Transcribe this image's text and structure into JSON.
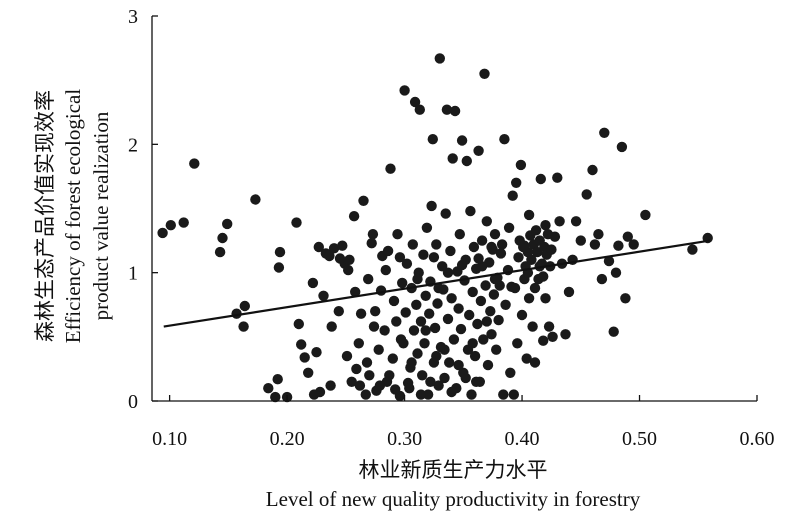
{
  "chart_data": {
    "type": "scatter",
    "title": "",
    "xlabel_cn": "林业新质生产力水平",
    "xlabel_en": "Level of new quality productivity in forestry",
    "ylabel_cn": "森林生态产品价值实现效率",
    "ylabel_en_line1": "Efficiency of forest ecological",
    "ylabel_en_line2": "product value realization",
    "xlim": [
      0.085,
      0.6
    ],
    "ylim": [
      0,
      3
    ],
    "x_ticks": [
      0.1,
      0.2,
      0.3,
      0.4,
      0.5,
      0.6
    ],
    "x_tick_labels": [
      "0.10",
      "0.20",
      "0.30",
      "0.40",
      "0.50",
      "0.60"
    ],
    "y_ticks": [
      0,
      1,
      2,
      3
    ],
    "y_tick_labels": [
      "0",
      "1",
      "2",
      "3"
    ],
    "grid": false,
    "legend": "none",
    "marker_color": "#1a1a1a",
    "line_color": "#111111",
    "trendline": {
      "x": [
        0.095,
        0.56
      ],
      "y": [
        0.58,
        1.25
      ]
    },
    "points": [
      [
        0.094,
        1.31
      ],
      [
        0.101,
        1.37
      ],
      [
        0.112,
        1.39
      ],
      [
        0.121,
        1.85
      ],
      [
        0.143,
        1.16
      ],
      [
        0.145,
        1.27
      ],
      [
        0.149,
        1.38
      ],
      [
        0.157,
        0.68
      ],
      [
        0.163,
        0.58
      ],
      [
        0.164,
        0.74
      ],
      [
        0.173,
        1.57
      ],
      [
        0.184,
        0.1
      ],
      [
        0.19,
        0.03
      ],
      [
        0.192,
        0.17
      ],
      [
        0.193,
        1.04
      ],
      [
        0.194,
        1.16
      ],
      [
        0.2,
        0.03
      ],
      [
        0.208,
        1.39
      ],
      [
        0.21,
        0.6
      ],
      [
        0.212,
        0.44
      ],
      [
        0.215,
        0.34
      ],
      [
        0.218,
        0.22
      ],
      [
        0.223,
        0.05
      ],
      [
        0.225,
        0.38
      ],
      [
        0.227,
        1.2
      ],
      [
        0.228,
        0.07
      ],
      [
        0.231,
        0.82
      ],
      [
        0.233,
        1.15
      ],
      [
        0.237,
        0.12
      ],
      [
        0.238,
        0.58
      ],
      [
        0.24,
        1.19
      ],
      [
        0.244,
        0.7
      ],
      [
        0.247,
        1.21
      ],
      [
        0.249,
        1.07
      ],
      [
        0.251,
        0.35
      ],
      [
        0.253,
        1.1
      ],
      [
        0.255,
        0.15
      ],
      [
        0.257,
        1.44
      ],
      [
        0.259,
        0.25
      ],
      [
        0.261,
        0.45
      ],
      [
        0.263,
        0.68
      ],
      [
        0.265,
        1.56
      ],
      [
        0.267,
        0.05
      ],
      [
        0.269,
        0.95
      ],
      [
        0.27,
        0.2
      ],
      [
        0.272,
        1.23
      ],
      [
        0.274,
        0.58
      ],
      [
        0.276,
        0.08
      ],
      [
        0.278,
        0.4
      ],
      [
        0.28,
        0.86
      ],
      [
        0.281,
        1.13
      ],
      [
        0.283,
        0.55
      ],
      [
        0.285,
        0.15
      ],
      [
        0.286,
        1.17
      ],
      [
        0.288,
        1.81
      ],
      [
        0.29,
        0.33
      ],
      [
        0.291,
        0.78
      ],
      [
        0.293,
        0.62
      ],
      [
        0.294,
        1.3
      ],
      [
        0.296,
        0.04
      ],
      [
        0.297,
        0.48
      ],
      [
        0.298,
        0.92
      ],
      [
        0.3,
        2.42
      ],
      [
        0.301,
        0.69
      ],
      [
        0.302,
        1.07
      ],
      [
        0.303,
        0.14
      ],
      [
        0.305,
        0.26
      ],
      [
        0.306,
        0.88
      ],
      [
        0.307,
        1.22
      ],
      [
        0.308,
        0.55
      ],
      [
        0.309,
        2.33
      ],
      [
        0.31,
        0.75
      ],
      [
        0.311,
        0.37
      ],
      [
        0.312,
        1.0
      ],
      [
        0.313,
        2.27
      ],
      [
        0.314,
        0.62
      ],
      [
        0.315,
        0.2
      ],
      [
        0.316,
        1.14
      ],
      [
        0.317,
        0.45
      ],
      [
        0.318,
        0.82
      ],
      [
        0.319,
        1.35
      ],
      [
        0.32,
        0.05
      ],
      [
        0.321,
        0.68
      ],
      [
        0.322,
        0.93
      ],
      [
        0.323,
        1.52
      ],
      [
        0.324,
        2.04
      ],
      [
        0.325,
        0.3
      ],
      [
        0.326,
        0.57
      ],
      [
        0.327,
        1.22
      ],
      [
        0.328,
        0.76
      ],
      [
        0.329,
        0.12
      ],
      [
        0.33,
        2.67
      ],
      [
        0.331,
        0.42
      ],
      [
        0.332,
        1.05
      ],
      [
        0.333,
        0.87
      ],
      [
        0.334,
        0.18
      ],
      [
        0.335,
        1.46
      ],
      [
        0.336,
        2.27
      ],
      [
        0.337,
        0.64
      ],
      [
        0.338,
        0.3
      ],
      [
        0.339,
        1.17
      ],
      [
        0.34,
        0.8
      ],
      [
        0.341,
        1.89
      ],
      [
        0.342,
        0.48
      ],
      [
        0.343,
        2.26
      ],
      [
        0.344,
        0.1
      ],
      [
        0.345,
        1.01
      ],
      [
        0.346,
        0.72
      ],
      [
        0.347,
        1.3
      ],
      [
        0.348,
        0.56
      ],
      [
        0.349,
        2.03
      ],
      [
        0.35,
        0.22
      ],
      [
        0.351,
        0.94
      ],
      [
        0.352,
        1.1
      ],
      [
        0.353,
        1.87
      ],
      [
        0.354,
        0.4
      ],
      [
        0.355,
        0.67
      ],
      [
        0.356,
        1.48
      ],
      [
        0.357,
        0.05
      ],
      [
        0.358,
        0.85
      ],
      [
        0.359,
        1.2
      ],
      [
        0.36,
        0.35
      ],
      [
        0.361,
        1.03
      ],
      [
        0.362,
        0.6
      ],
      [
        0.363,
        1.95
      ],
      [
        0.364,
        0.15
      ],
      [
        0.365,
        0.78
      ],
      [
        0.366,
        1.25
      ],
      [
        0.367,
        0.48
      ],
      [
        0.368,
        2.55
      ],
      [
        0.369,
        0.9
      ],
      [
        0.37,
        1.4
      ],
      [
        0.371,
        0.28
      ],
      [
        0.372,
        1.08
      ],
      [
        0.373,
        0.7
      ],
      [
        0.374,
        0.52
      ],
      [
        0.375,
        1.18
      ],
      [
        0.376,
        0.83
      ],
      [
        0.377,
        1.3
      ],
      [
        0.378,
        0.4
      ],
      [
        0.379,
        0.96
      ],
      [
        0.38,
        0.63
      ],
      [
        0.382,
        1.15
      ],
      [
        0.384,
        0.05
      ],
      [
        0.385,
        2.04
      ],
      [
        0.386,
        0.75
      ],
      [
        0.388,
        1.02
      ],
      [
        0.39,
        0.22
      ],
      [
        0.392,
        1.6
      ],
      [
        0.394,
        0.88
      ],
      [
        0.395,
        1.7
      ],
      [
        0.396,
        0.45
      ],
      [
        0.398,
        1.25
      ],
      [
        0.399,
        1.84
      ],
      [
        0.4,
        0.67
      ],
      [
        0.401,
        1.2
      ],
      [
        0.402,
        0.95
      ],
      [
        0.403,
        1.05
      ],
      [
        0.404,
        0.33
      ],
      [
        0.405,
        1.16
      ],
      [
        0.406,
        0.8
      ],
      [
        0.407,
        1.29
      ],
      [
        0.408,
        1.1
      ],
      [
        0.409,
        0.58
      ],
      [
        0.41,
        1.22
      ],
      [
        0.411,
        0.88
      ],
      [
        0.412,
        1.33
      ],
      [
        0.413,
        1.16
      ],
      [
        0.414,
        0.95
      ],
      [
        0.415,
        1.25
      ],
      [
        0.416,
        1.73
      ],
      [
        0.417,
        1.07
      ],
      [
        0.418,
        0.47
      ],
      [
        0.419,
        1.2
      ],
      [
        0.42,
        0.8
      ],
      [
        0.421,
        1.14
      ],
      [
        0.422,
        1.3
      ],
      [
        0.423,
        0.58
      ],
      [
        0.424,
        1.05
      ],
      [
        0.425,
        1.18
      ],
      [
        0.426,
        0.5
      ],
      [
        0.428,
        1.28
      ],
      [
        0.43,
        1.74
      ],
      [
        0.432,
        1.4
      ],
      [
        0.434,
        1.07
      ],
      [
        0.437,
        0.52
      ],
      [
        0.44,
        0.85
      ],
      [
        0.443,
        1.1
      ],
      [
        0.446,
        1.4
      ],
      [
        0.45,
        1.25
      ],
      [
        0.455,
        1.61
      ],
      [
        0.46,
        1.8
      ],
      [
        0.462,
        1.22
      ],
      [
        0.465,
        1.3
      ],
      [
        0.468,
        0.95
      ],
      [
        0.47,
        2.09
      ],
      [
        0.474,
        1.09
      ],
      [
        0.478,
        0.54
      ],
      [
        0.48,
        1.0
      ],
      [
        0.482,
        1.21
      ],
      [
        0.485,
        1.98
      ],
      [
        0.488,
        0.8
      ],
      [
        0.49,
        1.28
      ],
      [
        0.495,
        1.22
      ],
      [
        0.505,
        1.45
      ],
      [
        0.545,
        1.18
      ],
      [
        0.558,
        1.27
      ],
      [
        0.252,
        1.02
      ],
      [
        0.262,
        0.12
      ],
      [
        0.275,
        0.7
      ],
      [
        0.287,
        0.2
      ],
      [
        0.299,
        0.45
      ],
      [
        0.304,
        0.1
      ],
      [
        0.318,
        0.55
      ],
      [
        0.322,
        0.15
      ],
      [
        0.329,
        0.88
      ],
      [
        0.334,
        0.4
      ],
      [
        0.346,
        0.28
      ],
      [
        0.352,
        0.18
      ],
      [
        0.361,
        0.15
      ],
      [
        0.366,
        1.05
      ],
      [
        0.374,
        1.2
      ],
      [
        0.381,
        0.9
      ],
      [
        0.389,
        1.35
      ],
      [
        0.397,
        1.12
      ],
      [
        0.406,
        1.45
      ],
      [
        0.415,
        1.05
      ],
      [
        0.222,
        0.92
      ],
      [
        0.236,
        1.13
      ],
      [
        0.268,
        0.3
      ],
      [
        0.279,
        0.12
      ],
      [
        0.292,
        0.09
      ],
      [
        0.306,
        0.3
      ],
      [
        0.314,
        0.05
      ],
      [
        0.327,
        0.35
      ],
      [
        0.34,
        0.07
      ],
      [
        0.358,
        0.45
      ],
      [
        0.37,
        0.62
      ],
      [
        0.383,
        1.22
      ],
      [
        0.393,
        0.05
      ],
      [
        0.402,
        1.21
      ],
      [
        0.411,
        0.3
      ],
      [
        0.42,
        1.37
      ],
      [
        0.245,
        1.11
      ],
      [
        0.258,
        0.85
      ],
      [
        0.273,
        1.3
      ],
      [
        0.284,
        1.02
      ],
      [
        0.296,
        1.12
      ],
      [
        0.311,
        0.95
      ],
      [
        0.325,
        1.12
      ],
      [
        0.337,
        1.0
      ],
      [
        0.349,
        1.06
      ],
      [
        0.363,
        1.11
      ],
      [
        0.377,
        0.95
      ],
      [
        0.391,
        0.89
      ],
      [
        0.405,
        1.0
      ],
      [
        0.418,
        0.97
      ]
    ]
  }
}
